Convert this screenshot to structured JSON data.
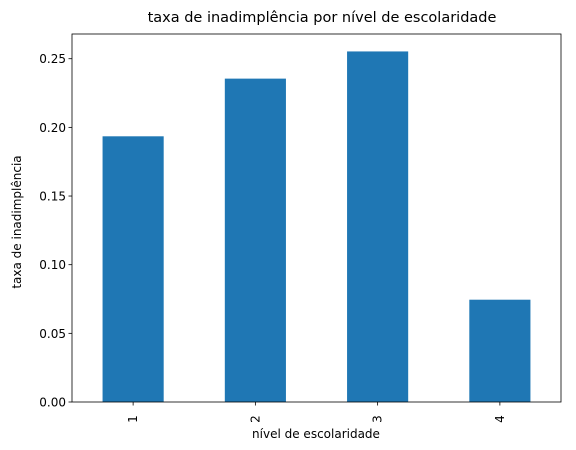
{
  "chart_data": {
    "type": "bar",
    "title": "taxa de inadimplência por nível de escolaridade",
    "xlabel": "nível de escolaridade",
    "ylabel": "taxa de inadimplência",
    "categories": [
      "1",
      "2",
      "3",
      "4"
    ],
    "values": [
      0.1935,
      0.2355,
      0.2553,
      0.0745
    ],
    "ylim": [
      0,
      0.268
    ],
    "yticks": [
      0.0,
      0.05,
      0.1,
      0.15,
      0.2,
      0.25
    ],
    "ytick_labels": [
      "0.00",
      "0.05",
      "0.10",
      "0.15",
      "0.20",
      "0.25"
    ],
    "bar_color": "#1f77b4",
    "grid": false,
    "legend": "none"
  }
}
